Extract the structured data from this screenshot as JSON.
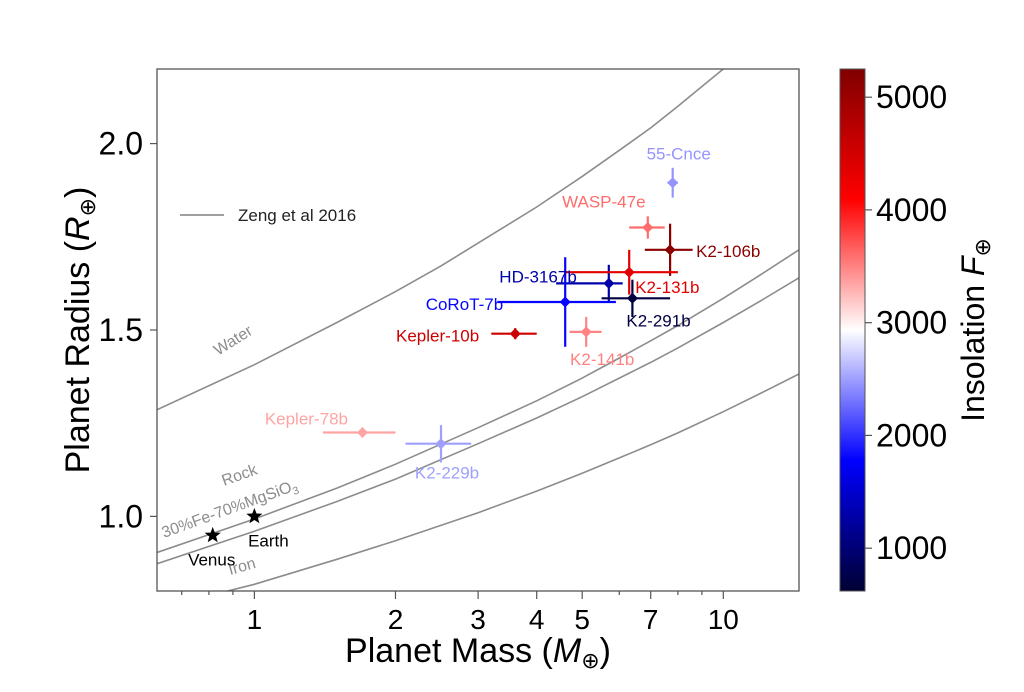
{
  "chart_data": {
    "type": "scatter",
    "xlabel": "Planet Mass",
    "xlabel_symbol": "M",
    "ylabel": "Planet Radius",
    "ylabel_symbol": "R",
    "earth_symbol": "⊕",
    "x_scale": "log",
    "xlim": [
      0.62,
      14.5
    ],
    "ylim": [
      0.8,
      2.2
    ],
    "x_ticks": [
      {
        "value": 1,
        "label": "1"
      },
      {
        "value": 2,
        "label": "2"
      },
      {
        "value": 3,
        "label": "3"
      },
      {
        "value": 4,
        "label": "4"
      },
      {
        "value": 5,
        "label": "5"
      },
      {
        "value": 7,
        "label": "7"
      },
      {
        "value": 10,
        "label": "10"
      }
    ],
    "y_ticks": [
      {
        "value": 1.0,
        "label": "1.0"
      },
      {
        "value": 1.5,
        "label": "1.5"
      },
      {
        "value": 2.0,
        "label": "2.0"
      }
    ],
    "grid": false,
    "legend": {
      "position": "upper-left",
      "entries": [
        "Zeng et al 2016"
      ]
    },
    "colorbar": {
      "label": "Insolation",
      "label_symbol": "F",
      "range": [
        620,
        5250
      ],
      "ticks": [
        {
          "value": 1000,
          "label": "1000"
        },
        {
          "value": 2000,
          "label": "2000"
        },
        {
          "value": 3000,
          "label": "3000"
        },
        {
          "value": 4000,
          "label": "4000"
        },
        {
          "value": 5000,
          "label": "5000"
        }
      ],
      "colormap": "seismic"
    },
    "curves": [
      {
        "label": "Water",
        "points": [
          [
            0.6,
            1.278
          ],
          [
            1,
            1.407
          ],
          [
            1.5,
            1.52
          ],
          [
            2,
            1.603
          ],
          [
            2.5,
            1.672
          ],
          [
            3,
            1.733
          ],
          [
            4,
            1.83
          ],
          [
            5,
            1.912
          ],
          [
            6,
            1.982
          ],
          [
            7,
            2.042
          ],
          [
            8,
            2.1
          ],
          [
            9,
            2.153
          ],
          [
            10,
            2.2
          ]
        ]
      },
      {
        "label": "Rock",
        "points": [
          [
            0.6,
            0.897
          ],
          [
            1,
            0.993
          ],
          [
            1.5,
            1.076
          ],
          [
            2,
            1.14
          ],
          [
            3,
            1.238
          ],
          [
            4,
            1.31
          ],
          [
            5,
            1.371
          ],
          [
            6,
            1.425
          ],
          [
            7,
            1.471
          ],
          [
            8,
            1.512
          ],
          [
            10,
            1.585
          ],
          [
            12,
            1.648
          ],
          [
            14.5,
            1.715
          ]
        ]
      },
      {
        "label": "30%Fe-70%MgSiO3",
        "label_sub": "3",
        "points": [
          [
            0.6,
            0.867
          ],
          [
            1,
            0.96
          ],
          [
            1.5,
            1.04
          ],
          [
            2,
            1.1
          ],
          [
            3,
            1.195
          ],
          [
            4,
            1.264
          ],
          [
            5,
            1.321
          ],
          [
            6,
            1.371
          ],
          [
            7,
            1.413
          ],
          [
            8,
            1.452
          ],
          [
            10,
            1.52
          ],
          [
            12,
            1.578
          ],
          [
            14.5,
            1.64
          ]
        ]
      },
      {
        "label": "Iron",
        "points": [
          [
            0.6,
            0.748
          ],
          [
            1,
            0.818
          ],
          [
            1.5,
            0.885
          ],
          [
            2,
            0.935
          ],
          [
            3,
            1.01
          ],
          [
            4,
            1.068
          ],
          [
            5,
            1.116
          ],
          [
            6,
            1.157
          ],
          [
            7,
            1.192
          ],
          [
            8,
            1.224
          ],
          [
            10,
            1.281
          ],
          [
            12,
            1.33
          ],
          [
            14.5,
            1.382
          ]
        ]
      }
    ],
    "planets": [
      {
        "name": "55-Cnce",
        "mass": 7.8,
        "mass_err": [
          0.2,
          0.2
        ],
        "radius": 1.895,
        "radius_err": [
          0.04,
          0.04
        ],
        "insolation": 2450
      },
      {
        "name": "WASP-47e",
        "mass": 6.9,
        "mass_err": [
          0.6,
          0.6
        ],
        "radius": 1.775,
        "radius_err": [
          0.03,
          0.03
        ],
        "insolation": 3600
      },
      {
        "name": "K2-106b",
        "mass": 7.7,
        "mass_err": [
          0.9,
          0.9
        ],
        "radius": 1.715,
        "radius_err": [
          0.07,
          0.07
        ],
        "insolation": 5150
      },
      {
        "name": "HD-3167b",
        "mass": 5.7,
        "mass_err": [
          1.3,
          0.4
        ],
        "radius": 1.625,
        "radius_err": [
          0.05,
          0.05
        ],
        "insolation": 1300
      },
      {
        "name": "K2-131b",
        "mass": 6.3,
        "mass_err": [
          1.7,
          1.7
        ],
        "radius": 1.655,
        "radius_err": [
          0.06,
          0.06
        ],
        "insolation": 4350
      },
      {
        "name": "CoRoT-7b",
        "mass": 4.6,
        "mass_err": [
          1.3,
          1.3
        ],
        "radius": 1.575,
        "radius_err": [
          0.12,
          0.12
        ],
        "insolation": 1800
      },
      {
        "name": "K2-291b",
        "mass": 6.4,
        "mass_err": [
          0.9,
          1.3
        ],
        "radius": 1.585,
        "radius_err": [
          0.05,
          0.05
        ],
        "insolation": 700
      },
      {
        "name": "Kepler-10b",
        "mass": 3.6,
        "mass_err": [
          0.4,
          0.4
        ],
        "radius": 1.49,
        "radius_err": [
          0.015,
          0.015
        ],
        "insolation": 4550
      },
      {
        "name": "K2-141b",
        "mass": 5.1,
        "mass_err": [
          0.4,
          0.4
        ],
        "radius": 1.495,
        "radius_err": [
          0.04,
          0.04
        ],
        "insolation": 3500
      },
      {
        "name": "Kepler-78b",
        "mass": 1.7,
        "mass_err": [
          0.3,
          0.3
        ],
        "radius": 1.225,
        "radius_err": [
          0.01,
          0.01
        ],
        "insolation": 3350
      },
      {
        "name": "K2-229b",
        "mass": 2.5,
        "mass_err": [
          0.4,
          0.4
        ],
        "radius": 1.195,
        "radius_err": [
          0.05,
          0.05
        ],
        "insolation": 2500
      }
    ],
    "solar_system": [
      {
        "name": "Earth",
        "mass": 1.0,
        "radius": 1.0
      },
      {
        "name": "Venus",
        "mass": 0.815,
        "radius": 0.949
      }
    ]
  }
}
